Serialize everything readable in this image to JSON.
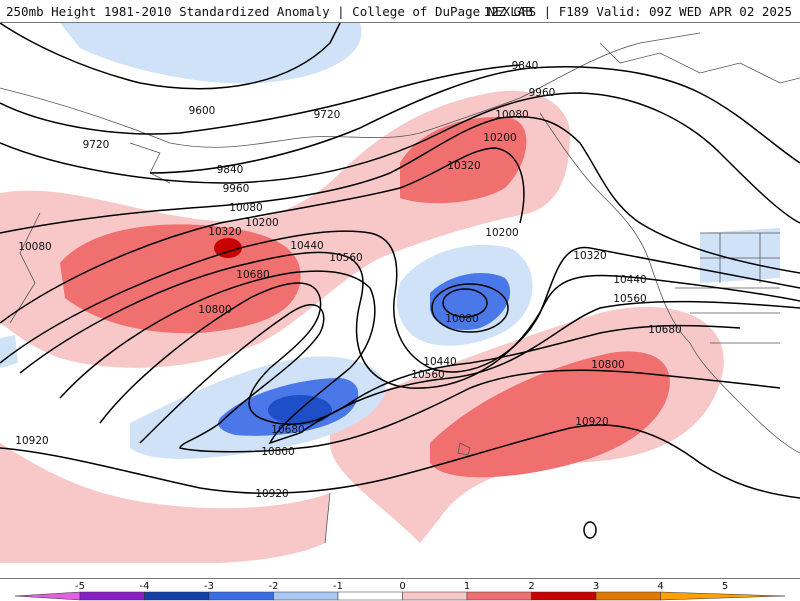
{
  "header": {
    "left": "250mb Height 1981-2010 Standardized Anomaly | College of DuPage NEXLAB",
    "right": "12Z GFS | F189 Valid: 09Z WED APR 02 2025"
  },
  "contour_labels": [
    "9840",
    "9960",
    "9600",
    "9720",
    "10080",
    "10200",
    "9720",
    "9840",
    "10320",
    "9960",
    "10080",
    "10200",
    "10320",
    "10440",
    "10080",
    "10560",
    "10200",
    "10680",
    "10320",
    "10800",
    "10440",
    "10560",
    "10080",
    "10680",
    "10440",
    "10800",
    "10560",
    "10680",
    "10920",
    "10800",
    "10920",
    "10920"
  ],
  "legend": {
    "ticks": [
      "-5",
      "-4",
      "-3",
      "-2",
      "-1",
      "0",
      "1",
      "2",
      "3",
      "4",
      "5"
    ],
    "colors": [
      "#e060e0",
      "#8a1fc8",
      "#1240a8",
      "#3a6ee8",
      "#a8c8f4",
      "#ffffff",
      "#f8c8c8",
      "#f07070",
      "#c80000",
      "#e07800",
      "#ffa000"
    ]
  },
  "map_colors": {
    "neg_light": "#cfe2f8",
    "neg_mid": "#4a78e8",
    "neg_dark": "#1e4ec8",
    "pos_light": "#f8c8c8",
    "pos_mid": "#f07070",
    "pos_dark": "#c80000"
  }
}
